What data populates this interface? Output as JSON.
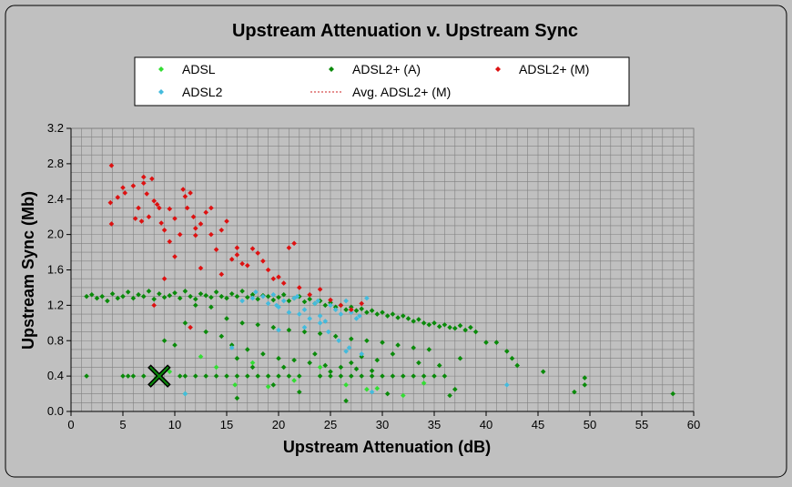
{
  "chart_data": {
    "type": "scatter",
    "title": "Upstream Attenuation v. Upstream Sync",
    "xlabel": "Upstream Attenuation (dB)",
    "ylabel": "Upstream Sync (Mb)",
    "xlim": [
      0,
      60
    ],
    "ylim": [
      0,
      3.2
    ],
    "xticks": [
      0,
      5,
      10,
      15,
      20,
      25,
      30,
      35,
      40,
      45,
      50,
      55,
      60
    ],
    "yticks": [
      "0.0",
      "0.4",
      "0.8",
      "1.2",
      "1.6",
      "2.0",
      "2.4",
      "2.8",
      "3.2"
    ],
    "grid": true,
    "legend_position": "top",
    "colors": {
      "ADSL": "#33dd33",
      "ADSL2": "#44bbdd",
      "ADSL2+ (A)": "#0a8a0a",
      "ADSL2+ (M)": "#dd1111",
      "Avg. ADSL2+ (M)": "#cc2222",
      "plot_background": "#c0c0c0",
      "frame_background": "#c0c0c0"
    },
    "series": [
      {
        "name": "ADSL",
        "marker": "diamond",
        "points": [
          [
            8.2,
            0.38
          ],
          [
            9.5,
            0.45
          ],
          [
            11.0,
            0.2
          ],
          [
            12.5,
            0.62
          ],
          [
            14.0,
            0.5
          ],
          [
            15.8,
            0.3
          ],
          [
            17.5,
            0.55
          ],
          [
            19.0,
            0.28
          ],
          [
            21.5,
            0.35
          ],
          [
            24.0,
            0.5
          ],
          [
            26.5,
            0.3
          ],
          [
            28.5,
            0.25
          ],
          [
            29.5,
            0.26
          ],
          [
            32.0,
            0.18
          ],
          [
            34.0,
            0.32
          ]
        ]
      },
      {
        "name": "ADSL2+ (A)",
        "marker": "diamond",
        "points": [
          [
            1.5,
            1.3
          ],
          [
            1.5,
            0.4
          ],
          [
            2.0,
            1.32
          ],
          [
            2.5,
            1.28
          ],
          [
            3.0,
            1.3
          ],
          [
            3.5,
            1.25
          ],
          [
            4.0,
            1.33
          ],
          [
            4.5,
            1.28
          ],
          [
            5.0,
            1.3
          ],
          [
            5.5,
            1.35
          ],
          [
            6.0,
            1.28
          ],
          [
            6.5,
            1.32
          ],
          [
            7.0,
            1.3
          ],
          [
            7.5,
            1.36
          ],
          [
            8.0,
            1.27
          ],
          [
            8.5,
            1.33
          ],
          [
            9.0,
            1.29
          ],
          [
            9.5,
            1.31
          ],
          [
            10.0,
            1.34
          ],
          [
            10.5,
            1.28
          ],
          [
            11.0,
            1.36
          ],
          [
            11.5,
            1.3
          ],
          [
            12.0,
            1.27
          ],
          [
            12.5,
            1.33
          ],
          [
            13.0,
            1.31
          ],
          [
            13.5,
            1.29
          ],
          [
            14.0,
            1.35
          ],
          [
            14.5,
            1.3
          ],
          [
            15.0,
            1.28
          ],
          [
            15.5,
            1.33
          ],
          [
            16.0,
            1.3
          ],
          [
            16.5,
            1.36
          ],
          [
            17.0,
            1.29
          ],
          [
            17.5,
            1.32
          ],
          [
            18.0,
            1.27
          ],
          [
            18.5,
            1.31
          ],
          [
            19.0,
            1.3
          ],
          [
            19.5,
            1.26
          ],
          [
            20.0,
            1.29
          ],
          [
            20.5,
            1.32
          ],
          [
            21.0,
            1.25
          ],
          [
            21.5,
            1.28
          ],
          [
            22.0,
            1.3
          ],
          [
            22.5,
            1.24
          ],
          [
            23.0,
            1.27
          ],
          [
            23.5,
            1.22
          ],
          [
            24.0,
            1.25
          ],
          [
            24.5,
            1.2
          ],
          [
            25.0,
            1.23
          ],
          [
            25.5,
            1.18
          ],
          [
            26.0,
            1.2
          ],
          [
            26.5,
            1.15
          ],
          [
            27.0,
            1.18
          ],
          [
            27.5,
            1.14
          ],
          [
            28.0,
            1.16
          ],
          [
            28.5,
            1.12
          ],
          [
            29.0,
            1.14
          ],
          [
            29.5,
            1.1
          ],
          [
            30.0,
            1.12
          ],
          [
            30.5,
            1.08
          ],
          [
            31.0,
            1.1
          ],
          [
            31.5,
            1.06
          ],
          [
            32.0,
            1.08
          ],
          [
            32.5,
            1.05
          ],
          [
            33.0,
            1.02
          ],
          [
            33.5,
            1.04
          ],
          [
            34.0,
            1.0
          ],
          [
            34.5,
            0.98
          ],
          [
            35.0,
            1.0
          ],
          [
            35.5,
            0.96
          ],
          [
            36.0,
            0.98
          ],
          [
            36.5,
            0.95
          ],
          [
            37.0,
            0.94
          ],
          [
            37.5,
            0.97
          ],
          [
            38.0,
            0.92
          ],
          [
            38.5,
            0.95
          ],
          [
            39.0,
            0.9
          ],
          [
            40.0,
            0.78
          ],
          [
            41.0,
            0.78
          ],
          [
            42.0,
            0.68
          ],
          [
            42.5,
            0.6
          ],
          [
            43.0,
            0.52
          ],
          [
            45.5,
            0.45
          ],
          [
            48.5,
            0.22
          ],
          [
            49.5,
            0.38
          ],
          [
            49.5,
            0.3
          ],
          [
            58.0,
            0.2
          ],
          [
            5.0,
            0.4
          ],
          [
            5.5,
            0.4
          ],
          [
            6.0,
            0.4
          ],
          [
            7.0,
            0.4
          ],
          [
            10.5,
            0.4
          ],
          [
            11.0,
            0.4
          ],
          [
            12.0,
            0.4
          ],
          [
            13.0,
            0.4
          ],
          [
            14.0,
            0.4
          ],
          [
            15.0,
            0.4
          ],
          [
            16.0,
            0.4
          ],
          [
            17.0,
            0.4
          ],
          [
            18.0,
            0.4
          ],
          [
            19.0,
            0.4
          ],
          [
            20.0,
            0.4
          ],
          [
            21.0,
            0.4
          ],
          [
            22.0,
            0.4
          ],
          [
            24.0,
            0.4
          ],
          [
            25.0,
            0.4
          ],
          [
            26.0,
            0.4
          ],
          [
            27.0,
            0.4
          ],
          [
            28.0,
            0.4
          ],
          [
            29.0,
            0.4
          ],
          [
            30.0,
            0.4
          ],
          [
            31.0,
            0.4
          ],
          [
            32.0,
            0.4
          ],
          [
            33.0,
            0.4
          ],
          [
            34.0,
            0.4
          ],
          [
            35.0,
            0.4
          ],
          [
            36.0,
            0.4
          ],
          [
            12.0,
            1.2
          ],
          [
            13.5,
            1.18
          ],
          [
            15.0,
            1.05
          ],
          [
            16.5,
            1.0
          ],
          [
            18.0,
            0.98
          ],
          [
            19.5,
            0.95
          ],
          [
            21.0,
            0.92
          ],
          [
            22.5,
            0.9
          ],
          [
            24.0,
            0.88
          ],
          [
            25.5,
            0.85
          ],
          [
            27.0,
            0.82
          ],
          [
            28.5,
            0.8
          ],
          [
            30.0,
            0.78
          ],
          [
            31.5,
            0.75
          ],
          [
            33.0,
            0.72
          ],
          [
            34.5,
            0.7
          ],
          [
            15.5,
            0.75
          ],
          [
            17.0,
            0.7
          ],
          [
            18.5,
            0.65
          ],
          [
            20.0,
            0.6
          ],
          [
            21.5,
            0.58
          ],
          [
            23.0,
            0.55
          ],
          [
            24.5,
            0.52
          ],
          [
            26.0,
            0.5
          ],
          [
            27.5,
            0.48
          ],
          [
            29.0,
            0.46
          ],
          [
            16.0,
            0.15
          ],
          [
            19.5,
            0.3
          ],
          [
            22.0,
            0.22
          ],
          [
            26.5,
            0.12
          ],
          [
            30.5,
            0.2
          ],
          [
            36.5,
            0.18
          ],
          [
            37.0,
            0.25
          ],
          [
            9.0,
            0.8
          ],
          [
            10.0,
            0.75
          ],
          [
            11.0,
            1.0
          ],
          [
            13.0,
            0.9
          ],
          [
            14.5,
            0.85
          ],
          [
            16.0,
            0.6
          ],
          [
            17.5,
            0.5
          ],
          [
            20.5,
            0.5
          ],
          [
            23.5,
            0.65
          ],
          [
            25.0,
            0.45
          ],
          [
            27.0,
            0.55
          ],
          [
            28.0,
            0.62
          ],
          [
            29.5,
            0.58
          ],
          [
            31.0,
            0.65
          ],
          [
            33.5,
            0.55
          ],
          [
            35.5,
            0.52
          ],
          [
            37.5,
            0.6
          ]
        ]
      },
      {
        "name": "ADSL2+ (M)",
        "marker": "diamond",
        "points": [
          [
            3.9,
            2.78
          ],
          [
            3.8,
            2.36
          ],
          [
            3.9,
            2.12
          ],
          [
            4.5,
            2.42
          ],
          [
            5.0,
            2.53
          ],
          [
            5.2,
            2.47
          ],
          [
            6.0,
            2.55
          ],
          [
            6.2,
            2.18
          ],
          [
            6.5,
            2.3
          ],
          [
            6.8,
            2.15
          ],
          [
            7.0,
            2.65
          ],
          [
            7.0,
            2.58
          ],
          [
            7.3,
            2.46
          ],
          [
            7.5,
            2.2
          ],
          [
            7.8,
            2.63
          ],
          [
            8.0,
            2.38
          ],
          [
            8.3,
            2.34
          ],
          [
            8.5,
            2.3
          ],
          [
            8.7,
            2.13
          ],
          [
            9.0,
            2.05
          ],
          [
            9.5,
            2.29
          ],
          [
            10.0,
            2.18
          ],
          [
            10.5,
            2.0
          ],
          [
            10.8,
            2.51
          ],
          [
            11.0,
            2.43
          ],
          [
            11.2,
            2.3
          ],
          [
            11.5,
            2.47
          ],
          [
            11.8,
            2.2
          ],
          [
            12.0,
            2.07
          ],
          [
            12.0,
            1.99
          ],
          [
            12.5,
            2.12
          ],
          [
            13.0,
            2.25
          ],
          [
            13.5,
            2.3
          ],
          [
            14.0,
            1.83
          ],
          [
            14.5,
            2.05
          ],
          [
            15.0,
            2.15
          ],
          [
            15.5,
            1.72
          ],
          [
            16.0,
            1.77
          ],
          [
            16.5,
            1.67
          ],
          [
            17.0,
            1.65
          ],
          [
            17.5,
            1.84
          ],
          [
            18.0,
            1.79
          ],
          [
            18.5,
            1.7
          ],
          [
            19.0,
            1.6
          ],
          [
            19.5,
            1.5
          ],
          [
            20.0,
            1.52
          ],
          [
            20.5,
            1.45
          ],
          [
            21.0,
            1.85
          ],
          [
            21.5,
            1.9
          ],
          [
            22.0,
            1.4
          ],
          [
            23.0,
            1.32
          ],
          [
            24.0,
            1.38
          ],
          [
            25.0,
            1.26
          ],
          [
            26.0,
            1.2
          ],
          [
            27.0,
            1.15
          ],
          [
            28.0,
            1.22
          ],
          [
            9.5,
            1.92
          ],
          [
            10.0,
            1.75
          ],
          [
            12.5,
            1.62
          ],
          [
            13.5,
            2.0
          ],
          [
            14.5,
            1.55
          ],
          [
            16.0,
            1.85
          ],
          [
            11.5,
            0.95
          ],
          [
            8.0,
            1.2
          ],
          [
            9.0,
            1.5
          ]
        ]
      },
      {
        "name": "ADSL2",
        "marker": "diamond",
        "points": [
          [
            15.5,
            0.72
          ],
          [
            16.5,
            1.25
          ],
          [
            17.5,
            1.28
          ],
          [
            18.5,
            1.3
          ],
          [
            19.0,
            1.22
          ],
          [
            19.5,
            1.32
          ],
          [
            20.0,
            1.18
          ],
          [
            20.5,
            1.25
          ],
          [
            21.0,
            1.12
          ],
          [
            21.5,
            1.28
          ],
          [
            22.0,
            1.1
          ],
          [
            22.5,
            1.15
          ],
          [
            23.0,
            1.05
          ],
          [
            23.5,
            1.22
          ],
          [
            24.0,
            1.08
          ],
          [
            24.5,
            1.02
          ],
          [
            25.0,
            1.2
          ],
          [
            25.5,
            1.15
          ],
          [
            26.0,
            1.1
          ],
          [
            26.5,
            0.68
          ],
          [
            27.0,
            1.12
          ],
          [
            27.5,
            1.05
          ],
          [
            28.0,
            0.65
          ],
          [
            28.5,
            1.28
          ],
          [
            29.0,
            0.22
          ],
          [
            17.8,
            1.35
          ],
          [
            19.8,
            1.2
          ],
          [
            21.8,
            1.3
          ],
          [
            23.8,
            1.25
          ],
          [
            24.8,
            0.9
          ],
          [
            25.8,
            0.8
          ],
          [
            26.8,
            0.72
          ],
          [
            27.8,
            1.08
          ],
          [
            11.0,
            0.2
          ],
          [
            42.0,
            0.3
          ],
          [
            20.0,
            0.92
          ],
          [
            22.5,
            0.95
          ],
          [
            24.0,
            1.0
          ],
          [
            26.5,
            1.25
          ]
        ]
      }
    ],
    "average_series": {
      "name": "Avg. ADSL2+ (M)",
      "line_style": "dashed",
      "shown_in_plot": false
    },
    "annotations": [
      {
        "type": "cross-marker",
        "x": 8.5,
        "y": 0.4
      }
    ]
  }
}
